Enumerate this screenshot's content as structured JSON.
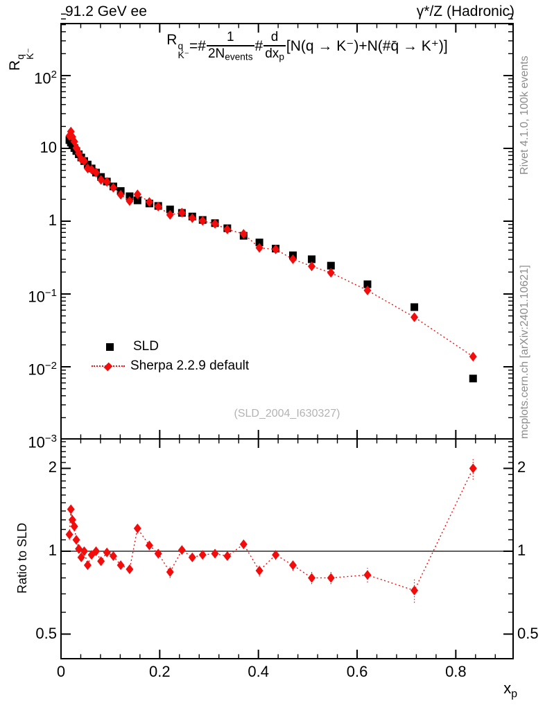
{
  "header": {
    "left_title": "91.2 GeV ee",
    "right_title": "γ*/Z (Hadronic)"
  },
  "formula": {
    "lhs_base": "R",
    "lhs_sup": "q",
    "lhs_sub": "K⁻",
    "equals": "=#",
    "frac1": {
      "num": "1",
      "den_main": "2N",
      "den_sub": "events"
    },
    "hash2": "#",
    "frac2": {
      "num": "d",
      "den_main": "dx",
      "den_sub": "p"
    },
    "rhs": "[N(q → K⁻)+N(#q̄ → K⁺)]"
  },
  "axes": {
    "y_label": {
      "base": "R",
      "sup": "q",
      "sub": "K⁻"
    },
    "ratio_label": "Ratio to SLD",
    "x_label": {
      "base": "x",
      "sub": "p"
    },
    "x_ticks": [
      {
        "v": 0,
        "label": "0"
      },
      {
        "v": 0.2,
        "label": "0.2"
      },
      {
        "v": 0.4,
        "label": "0.4"
      },
      {
        "v": 0.6,
        "label": "0.6"
      },
      {
        "v": 0.8,
        "label": "0.8"
      }
    ],
    "main_y_ticks": [
      {
        "v": 100,
        "m": "10",
        "e": "2"
      },
      {
        "v": 10,
        "m": "10",
        "e": ""
      },
      {
        "v": 1,
        "m": "1",
        "e": ""
      },
      {
        "v": 0.1,
        "m": "10",
        "e": "−1"
      },
      {
        "v": 0.01,
        "m": "10",
        "e": "−2"
      },
      {
        "v": 0.001,
        "m": "10",
        "e": "−3"
      }
    ],
    "ratio_y_ticks": [
      {
        "v": 2,
        "label": "2"
      },
      {
        "v": 1,
        "label": "1"
      },
      {
        "v": 0.5,
        "label": "0.5"
      }
    ]
  },
  "legend": {
    "items": [
      {
        "label": "SLD",
        "marker": "black-filled-square"
      },
      {
        "label": "Sherpa 2.2.9 default",
        "marker": "red-diamond-with-dotted-line"
      }
    ]
  },
  "watermark": "(SLD_2004_I630327)",
  "side_notes": {
    "rivet": "Rivet 4.1.0,  100k events",
    "mcplots": "mcplots.cern.ch [arXiv:2401.10621]"
  },
  "colors": {
    "data": "#000000",
    "mc": "#f20c0c",
    "frame": "#000000",
    "notes": "#8c8c8c",
    "watermark": "#b3b3b3"
  },
  "chart_data": {
    "type": "scatter",
    "title": "91.2 GeV ee — γ*/Z (Hadronic)",
    "xlabel": "x_p",
    "ylabel": "R_K^q",
    "ratio_ylabel": "Ratio to SLD",
    "xlim": [
      0,
      0.917
    ],
    "main_ylim": [
      0.001,
      800
    ],
    "ratio_ylim": [
      0.41,
      2.56
    ],
    "log_y_main": true,
    "log_y_ratio": true,
    "x": [
      0.017,
      0.02,
      0.023,
      0.027,
      0.031,
      0.036,
      0.041,
      0.047,
      0.054,
      0.062,
      0.071,
      0.081,
      0.093,
      0.106,
      0.121,
      0.139,
      0.155,
      0.179,
      0.197,
      0.221,
      0.245,
      0.266,
      0.287,
      0.312,
      0.337,
      0.37,
      0.402,
      0.435,
      0.47,
      0.508,
      0.547,
      0.621,
      0.716,
      0.835
    ],
    "series": [
      {
        "name": "SLD",
        "marker": "filled-square",
        "color": "#000000",
        "values": [
          13.0,
          12.0,
          11.1,
          10.1,
          9.2,
          8.3,
          7.5,
          6.7,
          6.0,
          5.3,
          4.65,
          4.05,
          3.5,
          3.0,
          2.6,
          2.2,
          1.93,
          1.75,
          1.62,
          1.45,
          1.3,
          1.16,
          1.04,
          0.94,
          0.8,
          0.63,
          0.51,
          0.42,
          0.34,
          0.3,
          0.245,
          0.136,
          0.066,
          0.0069
        ]
      },
      {
        "name": "Sherpa 2.2.9 default",
        "marker": "filled-diamond",
        "color": "#f20c0c",
        "line": "dotted",
        "values": [
          14.9,
          17.0,
          14.4,
          12.4,
          10.1,
          8.5,
          7.1,
          6.7,
          5.3,
          5.1,
          4.65,
          3.7,
          3.47,
          2.88,
          2.31,
          1.89,
          2.34,
          1.84,
          1.59,
          1.22,
          1.31,
          1.1,
          1.01,
          0.92,
          0.77,
          0.67,
          0.43,
          0.41,
          0.3,
          0.24,
          0.196,
          0.112,
          0.048,
          0.0138
        ]
      }
    ],
    "ratio_panel": {
      "name": "Sherpa 2.2.9 default / SLD",
      "reference_line": 1,
      "values": [
        1.15,
        1.42,
        1.3,
        1.23,
        1.1,
        1.02,
        0.95,
        1.0,
        0.89,
        0.97,
        1.0,
        0.92,
        0.99,
        0.96,
        0.89,
        0.86,
        1.21,
        1.05,
        0.98,
        0.84,
        1.01,
        0.95,
        0.97,
        0.98,
        0.96,
        1.06,
        0.85,
        0.97,
        0.89,
        0.8,
        0.8,
        0.82,
        0.72,
        2.0
      ],
      "errors": [
        0.05,
        0.06,
        0.05,
        0.05,
        0.04,
        0.04,
        0.03,
        0.03,
        0.03,
        0.03,
        0.03,
        0.03,
        0.03,
        0.03,
        0.03,
        0.03,
        0.05,
        0.04,
        0.04,
        0.04,
        0.03,
        0.03,
        0.03,
        0.03,
        0.03,
        0.04,
        0.04,
        0.04,
        0.04,
        0.04,
        0.04,
        0.05,
        0.07,
        0.18
      ]
    }
  }
}
